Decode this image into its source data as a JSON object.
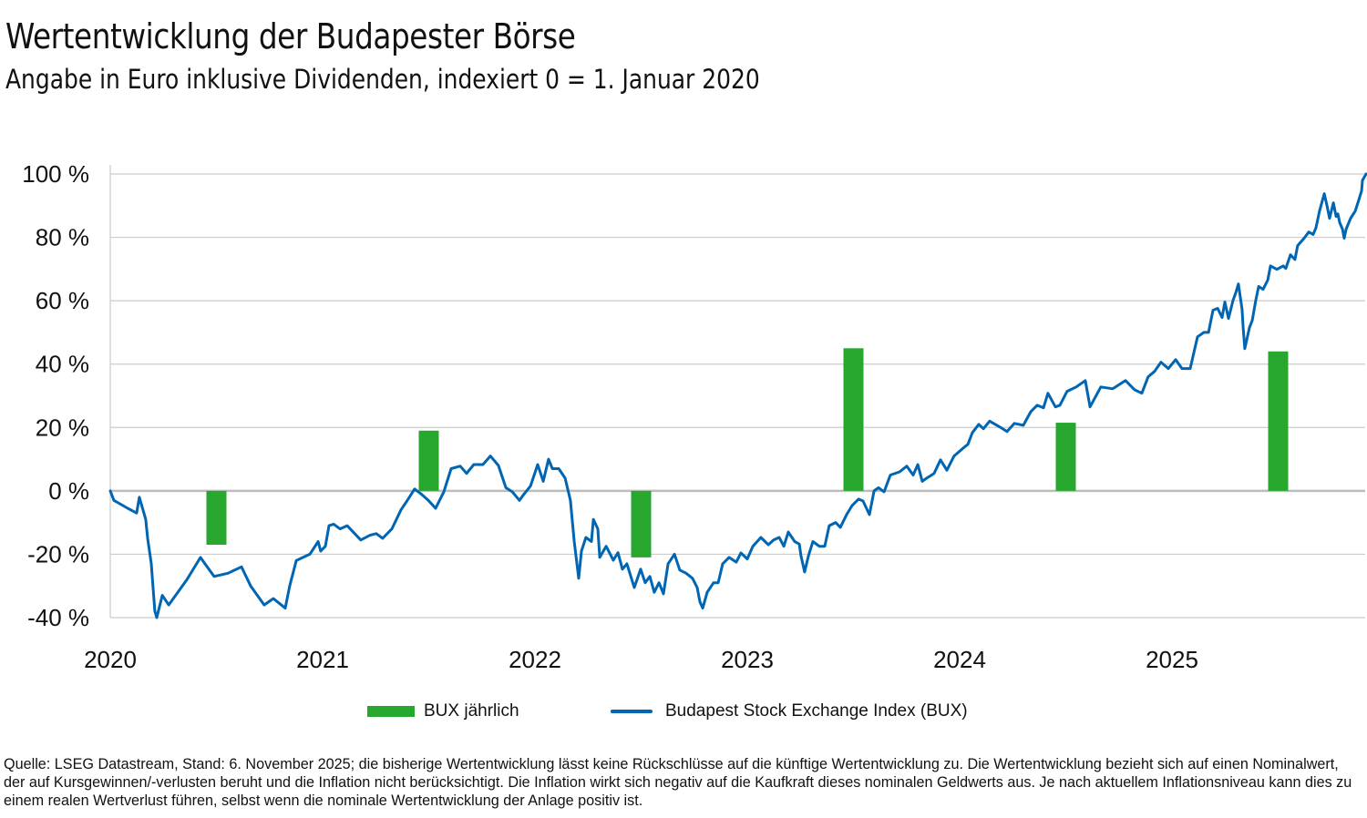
{
  "header": {
    "title": "Wertentwicklung der Budapester Börse",
    "subtitle": "Angabe in Euro inklusive Dividenden, indexiert 0 = 1. Januar 2020"
  },
  "legend": {
    "bar_label": "BUX jährlich",
    "line_label": "Budapest Stock Exchange Index (BUX)"
  },
  "footer": {
    "text": "Quelle: LSEG Datastream, Stand: 6. November 2025; die bisherige Wertentwicklung lässt keine Rückschlüsse auf die künftige Wertentwicklung zu. Die Wertentwicklung bezieht sich auf einen Nominalwert, der auf Kursgewinnen/-verlusten beruht und die Inflation nicht berücksichtigt. Die Inflation wirkt sich negativ auf die Kaufkraft dieses nominalen Geldwerts aus. Je nach aktuellem Inflationsniveau kann dies zu einem realen Wertverlust führen, selbst wenn die nominale Wertentwicklung der Anlage positiv ist."
  },
  "colors": {
    "bar": "#28a72f",
    "line": "#0066b3",
    "grid": "#cccccc",
    "zero_line": "#bdbdbd"
  },
  "chart_data": {
    "type": "line+bar",
    "title": "Wertentwicklung der Budapester Börse",
    "subtitle": "Angabe in Euro inklusive Dividenden, indexiert 0 = 1. Januar 2020",
    "xlabel": "",
    "ylabel": "",
    "xlim": [
      2020,
      2025.87
    ],
    "ylim": [
      -40,
      100
    ],
    "x_ticks": [
      "2020",
      "2021",
      "2022",
      "2023",
      "2024",
      "2025"
    ],
    "y_ticks": [
      "100 %",
      "80 %",
      "60 %",
      "40 %",
      "20 %",
      "0 %",
      "-20 %",
      "-40 %"
    ],
    "y_tick_values": [
      100,
      80,
      60,
      40,
      20,
      0,
      -20,
      -40
    ],
    "grid": true,
    "legend_position": "bottom",
    "bar_series": {
      "name": "BUX jährlich",
      "categories": [
        "2020",
        "2021",
        "2022",
        "2023",
        "2024",
        "2025"
      ],
      "x": [
        2020.5,
        2021.5,
        2022.5,
        2023.5,
        2024.5,
        2025.5
      ],
      "values": [
        -17,
        19,
        -21,
        45,
        21.5,
        44
      ]
    },
    "line_series": {
      "name": "Budapest Stock Exchange Index (BUX)",
      "points": [
        [
          2020.0,
          0
        ],
        [
          2020.017,
          -3
        ],
        [
          2020.082,
          -5.5
        ],
        [
          2020.124,
          -7
        ],
        [
          2020.137,
          -2
        ],
        [
          2020.167,
          -9
        ],
        [
          2020.176,
          -15
        ],
        [
          2020.193,
          -23
        ],
        [
          2020.21,
          -38
        ],
        [
          2020.219,
          -40
        ],
        [
          2020.245,
          -33
        ],
        [
          2020.275,
          -36
        ],
        [
          2020.318,
          -32
        ],
        [
          2020.361,
          -28
        ],
        [
          2020.425,
          -21
        ],
        [
          2020.446,
          -23
        ],
        [
          2020.489,
          -27
        ],
        [
          2020.554,
          -26
        ],
        [
          2020.618,
          -24
        ],
        [
          2020.661,
          -30
        ],
        [
          2020.725,
          -36
        ],
        [
          2020.768,
          -34
        ],
        [
          2020.824,
          -37
        ],
        [
          2020.845,
          -30
        ],
        [
          2020.876,
          -22
        ],
        [
          2020.94,
          -20
        ],
        [
          2020.979,
          -16
        ],
        [
          2020.991,
          -19
        ],
        [
          2021.013,
          -17.5
        ],
        [
          2021.03,
          -11
        ],
        [
          2021.052,
          -10.5
        ],
        [
          2021.082,
          -12
        ],
        [
          2021.116,
          -11
        ],
        [
          2021.137,
          -12.5
        ],
        [
          2021.18,
          -15.5
        ],
        [
          2021.223,
          -14
        ],
        [
          2021.253,
          -13.5
        ],
        [
          2021.283,
          -15
        ],
        [
          2021.326,
          -12
        ],
        [
          2021.369,
          -6
        ],
        [
          2021.403,
          -2.6
        ],
        [
          2021.433,
          0.6
        ],
        [
          2021.464,
          -1
        ],
        [
          2021.498,
          -3
        ],
        [
          2021.532,
          -5.5
        ],
        [
          2021.571,
          -0.3
        ],
        [
          2021.605,
          7
        ],
        [
          2021.648,
          7.8
        ],
        [
          2021.678,
          5.5
        ],
        [
          2021.712,
          8.3
        ],
        [
          2021.755,
          8.3
        ],
        [
          2021.79,
          11
        ],
        [
          2021.828,
          8
        ],
        [
          2021.863,
          1
        ],
        [
          2021.893,
          -0.3
        ],
        [
          2021.927,
          -3
        ],
        [
          2021.949,
          -1
        ],
        [
          2021.979,
          1.5
        ],
        [
          2022.013,
          8.3
        ],
        [
          2022.039,
          3
        ],
        [
          2022.064,
          10
        ],
        [
          2022.082,
          7
        ],
        [
          2022.112,
          7
        ],
        [
          2022.142,
          4
        ],
        [
          2022.167,
          -3
        ],
        [
          2022.185,
          -16
        ],
        [
          2022.206,
          -27.6
        ],
        [
          2022.219,
          -19
        ],
        [
          2022.24,
          -14.7
        ],
        [
          2022.266,
          -16
        ],
        [
          2022.275,
          -9
        ],
        [
          2022.296,
          -12
        ],
        [
          2022.305,
          -21
        ],
        [
          2022.335,
          -17.5
        ],
        [
          2022.369,
          -21.9
        ],
        [
          2022.391,
          -19.5
        ],
        [
          2022.412,
          -24.7
        ],
        [
          2022.433,
          -23
        ],
        [
          2022.468,
          -30.5
        ],
        [
          2022.498,
          -24.7
        ],
        [
          2022.519,
          -29
        ],
        [
          2022.541,
          -27
        ],
        [
          2022.562,
          -32
        ],
        [
          2022.584,
          -29
        ],
        [
          2022.605,
          -32.5
        ],
        [
          2022.627,
          -23
        ],
        [
          2022.657,
          -20
        ],
        [
          2022.682,
          -25
        ],
        [
          2022.712,
          -26
        ],
        [
          2022.742,
          -27.6
        ],
        [
          2022.764,
          -30.5
        ],
        [
          2022.777,
          -35
        ],
        [
          2022.79,
          -37
        ],
        [
          2022.811,
          -32
        ],
        [
          2022.841,
          -29
        ],
        [
          2022.863,
          -29
        ],
        [
          2022.884,
          -23
        ],
        [
          2022.914,
          -21
        ],
        [
          2022.948,
          -22.5
        ],
        [
          2022.97,
          -19.6
        ],
        [
          2023.0,
          -21.5
        ],
        [
          2023.026,
          -17.5
        ],
        [
          2023.064,
          -14.7
        ],
        [
          2023.099,
          -17
        ],
        [
          2023.124,
          -15.5
        ],
        [
          2023.15,
          -14.7
        ],
        [
          2023.172,
          -17.5
        ],
        [
          2023.193,
          -13
        ],
        [
          2023.223,
          -16
        ],
        [
          2023.245,
          -16.8
        ],
        [
          2023.253,
          -20.5
        ],
        [
          2023.27,
          -25.6
        ],
        [
          2023.288,
          -20.5
        ],
        [
          2023.309,
          -16
        ],
        [
          2023.339,
          -17.5
        ],
        [
          2023.365,
          -17.5
        ],
        [
          2023.386,
          -11
        ],
        [
          2023.416,
          -10
        ],
        [
          2023.438,
          -11.5
        ],
        [
          2023.468,
          -7.5
        ],
        [
          2023.494,
          -4.6
        ],
        [
          2023.524,
          -2.6
        ],
        [
          2023.545,
          -3.2
        ],
        [
          2023.575,
          -7.5
        ],
        [
          2023.597,
          0
        ],
        [
          2023.618,
          1
        ],
        [
          2023.644,
          -0.3
        ],
        [
          2023.674,
          5
        ],
        [
          2023.717,
          6
        ],
        [
          2023.751,
          7.8
        ],
        [
          2023.781,
          5
        ],
        [
          2023.803,
          8.3
        ],
        [
          2023.824,
          3
        ],
        [
          2023.845,
          4
        ],
        [
          2023.88,
          5.5
        ],
        [
          2023.91,
          9.8
        ],
        [
          2023.94,
          6.5
        ],
        [
          2023.974,
          11
        ],
        [
          2024.017,
          13.5
        ],
        [
          2024.039,
          14.7
        ],
        [
          2024.06,
          18.4
        ],
        [
          2024.09,
          21
        ],
        [
          2024.112,
          19.6
        ],
        [
          2024.141,
          22
        ],
        [
          2024.193,
          20
        ],
        [
          2024.223,
          18.7
        ],
        [
          2024.258,
          21.3
        ],
        [
          2024.3,
          20.7
        ],
        [
          2024.335,
          25
        ],
        [
          2024.365,
          27
        ],
        [
          2024.395,
          26.2
        ],
        [
          2024.416,
          30.8
        ],
        [
          2024.451,
          26.5
        ],
        [
          2024.472,
          27
        ],
        [
          2024.506,
          31.4
        ],
        [
          2024.549,
          32.8
        ],
        [
          2024.592,
          34.8
        ],
        [
          2024.614,
          26.5
        ],
        [
          2024.665,
          32.8
        ],
        [
          2024.721,
          32.2
        ],
        [
          2024.781,
          34.8
        ],
        [
          2024.824,
          31.9
        ],
        [
          2024.858,
          30.8
        ],
        [
          2024.888,
          36
        ],
        [
          2024.918,
          37.7
        ],
        [
          2024.948,
          40.6
        ],
        [
          2024.983,
          38.6
        ],
        [
          2025.017,
          41.4
        ],
        [
          2025.047,
          38.6
        ],
        [
          2025.086,
          38.6
        ],
        [
          2025.12,
          48.6
        ],
        [
          2025.15,
          50
        ],
        [
          2025.172,
          50
        ],
        [
          2025.193,
          57
        ],
        [
          2025.215,
          57.6
        ],
        [
          2025.236,
          54.7
        ],
        [
          2025.249,
          59.6
        ],
        [
          2025.266,
          54.4
        ],
        [
          2025.288,
          60.2
        ],
        [
          2025.3,
          62.4
        ],
        [
          2025.313,
          65.3
        ],
        [
          2025.33,
          57.3
        ],
        [
          2025.335,
          51.5
        ],
        [
          2025.343,
          44.9
        ],
        [
          2025.365,
          51.5
        ],
        [
          2025.378,
          53.8
        ],
        [
          2025.395,
          60.2
        ],
        [
          2025.408,
          64.5
        ],
        [
          2025.429,
          63.6
        ],
        [
          2025.451,
          66.5
        ],
        [
          2025.464,
          71
        ],
        [
          2025.494,
          69.9
        ],
        [
          2025.524,
          71
        ],
        [
          2025.536,
          70.2
        ],
        [
          2025.558,
          74.5
        ],
        [
          2025.579,
          73
        ],
        [
          2025.592,
          77.4
        ],
        [
          2025.622,
          79.7
        ],
        [
          2025.644,
          81.7
        ],
        [
          2025.665,
          80.9
        ],
        [
          2025.678,
          83
        ],
        [
          2025.695,
          88.3
        ],
        [
          2025.717,
          93.8
        ],
        [
          2025.73,
          90
        ],
        [
          2025.742,
          86
        ],
        [
          2025.76,
          90.9
        ],
        [
          2025.773,
          86.6
        ],
        [
          2025.781,
          87.4
        ],
        [
          2025.79,
          84.6
        ],
        [
          2025.803,
          82.6
        ],
        [
          2025.811,
          79.7
        ],
        [
          2025.82,
          82.6
        ],
        [
          2025.841,
          86
        ],
        [
          2025.863,
          88.3
        ],
        [
          2025.88,
          91.8
        ],
        [
          2025.893,
          94.7
        ],
        [
          2025.897,
          98
        ],
        [
          2025.914,
          100
        ]
      ]
    }
  }
}
